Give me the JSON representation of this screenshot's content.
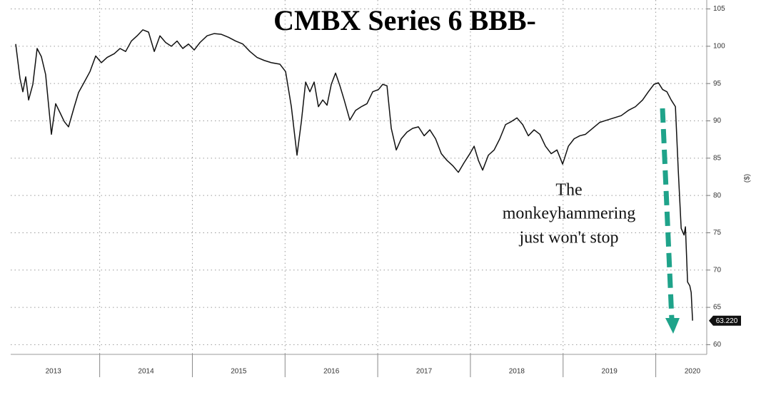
{
  "chart_data": {
    "type": "line",
    "title": "CMBX Series 6 BBB-",
    "ylabel": "($)",
    "annotation": [
      "The",
      "monkeyhammering",
      "just won't stop"
    ],
    "grid": true,
    "xlim": [
      2013.04,
      2020.55
    ],
    "xticks": [
      2013,
      2014,
      2015,
      2016,
      2017,
      2018,
      2019,
      2020
    ],
    "ylim": [
      58.7,
      106.2
    ],
    "yticks": [
      60,
      65,
      70,
      75,
      80,
      85,
      90,
      95,
      100,
      105
    ],
    "x": [
      2013.094,
      2013.14,
      2013.171,
      2013.202,
      2013.233,
      2013.279,
      2013.325,
      2013.371,
      2013.417,
      2013.479,
      2013.525,
      2013.572,
      2013.618,
      2013.664,
      2013.726,
      2013.772,
      2013.834,
      2013.895,
      2013.957,
      2014.018,
      2014.08,
      2014.157,
      2014.219,
      2014.28,
      2014.342,
      2014.404,
      2014.465,
      2014.527,
      2014.589,
      2014.65,
      2014.712,
      2014.773,
      2014.835,
      2014.897,
      2014.958,
      2015.02,
      2015.082,
      2015.159,
      2015.236,
      2015.313,
      2015.39,
      2015.467,
      2015.544,
      2015.621,
      2015.698,
      2015.775,
      2015.852,
      2015.944,
      2016.006,
      2016.068,
      2016.129,
      2016.176,
      2016.222,
      2016.268,
      2016.314,
      2016.36,
      2016.407,
      2016.453,
      2016.499,
      2016.545,
      2016.592,
      2016.638,
      2016.699,
      2016.761,
      2016.823,
      2016.884,
      2016.946,
      2017.008,
      2017.054,
      2017.1,
      2017.146,
      2017.2,
      2017.254,
      2017.316,
      2017.377,
      2017.439,
      2017.501,
      2017.562,
      2017.624,
      2017.686,
      2017.747,
      2017.809,
      2017.87,
      2017.932,
      2017.994,
      2018.04,
      2018.086,
      2018.132,
      2018.194,
      2018.256,
      2018.317,
      2018.379,
      2018.441,
      2018.502,
      2018.564,
      2018.625,
      2018.687,
      2018.749,
      2018.81,
      2018.872,
      2018.934,
      2018.995,
      2019.057,
      2019.119,
      2019.18,
      2019.242,
      2019.319,
      2019.396,
      2019.473,
      2019.55,
      2019.627,
      2019.704,
      2019.781,
      2019.858,
      2019.92,
      2019.981,
      2020.028,
      2020.074,
      2020.12,
      2020.166,
      2020.212,
      2020.243,
      2020.274,
      2020.305,
      2020.32,
      2020.343,
      2020.367,
      2020.382,
      2020.397
    ],
    "series": [
      {
        "color": "#111111",
        "values": [
          100.3,
          95.7,
          93.9,
          95.9,
          92.8,
          94.9,
          99.7,
          98.6,
          96.2,
          88.2,
          92.3,
          91.1,
          89.9,
          89.2,
          91.9,
          93.8,
          95.2,
          96.6,
          98.7,
          97.8,
          98.5,
          99.0,
          99.7,
          99.3,
          100.7,
          101.4,
          102.2,
          101.9,
          99.3,
          101.4,
          100.5,
          100.0,
          100.7,
          99.7,
          100.3,
          99.5,
          100.5,
          101.4,
          101.7,
          101.6,
          101.2,
          100.7,
          100.3,
          99.3,
          98.5,
          98.1,
          97.8,
          97.6,
          96.6,
          91.9,
          85.4,
          89.9,
          95.2,
          93.9,
          95.2,
          91.9,
          92.8,
          92.1,
          94.9,
          96.4,
          94.7,
          92.8,
          90.1,
          91.4,
          91.9,
          92.3,
          93.9,
          94.2,
          94.9,
          94.7,
          89.0,
          86.1,
          87.6,
          88.5,
          89.0,
          89.2,
          88.0,
          88.8,
          87.6,
          85.6,
          84.7,
          84.0,
          83.1,
          84.4,
          85.6,
          86.6,
          84.7,
          83.4,
          85.4,
          86.1,
          87.6,
          89.5,
          89.9,
          90.4,
          89.5,
          88.0,
          88.8,
          88.2,
          86.6,
          85.6,
          86.1,
          84.2,
          86.6,
          87.6,
          88.0,
          88.2,
          89.0,
          89.8,
          90.1,
          90.4,
          90.7,
          91.4,
          91.9,
          92.8,
          93.9,
          94.9,
          95.1,
          94.2,
          93.9,
          92.8,
          91.9,
          83.3,
          75.6,
          74.7,
          75.8,
          68.4,
          67.9,
          67.0,
          63.22
        ],
        "value_labels": [
          null,
          null,
          null,
          null,
          null,
          null,
          null,
          null,
          null,
          null,
          null,
          null,
          null,
          null,
          null,
          null,
          null,
          null,
          null,
          null,
          null,
          null,
          null,
          null,
          null,
          null,
          null,
          null,
          null,
          null,
          null,
          null,
          null,
          null,
          null,
          null,
          null,
          null,
          null,
          null,
          null,
          null,
          null,
          null,
          null,
          null,
          null,
          null,
          null,
          null,
          null,
          null,
          null,
          null,
          null,
          null,
          null,
          null,
          null,
          null,
          null,
          null,
          null,
          null,
          null,
          null,
          null,
          null,
          null,
          null,
          null,
          null,
          null,
          null,
          null,
          null,
          null,
          null,
          null,
          null,
          null,
          null,
          null,
          null,
          null,
          null,
          null,
          null,
          null,
          null,
          null,
          null,
          null,
          null,
          null,
          null,
          null,
          null,
          null,
          null,
          null,
          null,
          null,
          null,
          null,
          null,
          null,
          null,
          null,
          null,
          null,
          null,
          null,
          null,
          null,
          null,
          null,
          null,
          null,
          null,
          null,
          null,
          null,
          null,
          null,
          null,
          null,
          null,
          "63.220"
        ]
      }
    ]
  }
}
